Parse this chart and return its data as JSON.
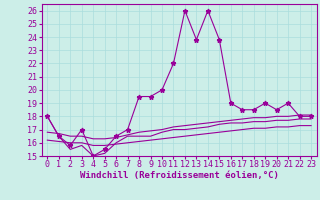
{
  "xlabel": "Windchill (Refroidissement éolien,°C)",
  "background_color": "#cceee8",
  "line_color": "#990099",
  "hours": [
    0,
    1,
    2,
    3,
    4,
    5,
    6,
    7,
    8,
    9,
    10,
    11,
    12,
    13,
    14,
    15,
    16,
    17,
    18,
    19,
    20,
    21,
    22,
    23
  ],
  "temp": [
    18,
    16.5,
    15.8,
    17,
    15,
    15.5,
    16.5,
    17,
    19.5,
    19.5,
    20,
    22,
    26,
    23.8,
    26,
    23.8,
    19,
    18.5,
    18.5,
    19,
    18.5,
    19,
    18,
    18
  ],
  "min_line": [
    18,
    16.5,
    15.5,
    15.8,
    15,
    15.2,
    16.0,
    16.5,
    16.5,
    16.5,
    16.8,
    17.0,
    17.0,
    17.1,
    17.2,
    17.4,
    17.5,
    17.5,
    17.6,
    17.6,
    17.7,
    17.7,
    17.8,
    17.8
  ],
  "trend1": [
    16.8,
    16.7,
    16.5,
    16.5,
    16.3,
    16.3,
    16.4,
    16.6,
    16.8,
    16.9,
    17.0,
    17.2,
    17.3,
    17.4,
    17.5,
    17.6,
    17.7,
    17.8,
    17.9,
    17.9,
    18.0,
    18.0,
    18.1,
    18.1
  ],
  "trend2": [
    16.2,
    16.1,
    16.0,
    16.0,
    15.8,
    15.8,
    15.9,
    16.0,
    16.1,
    16.2,
    16.3,
    16.4,
    16.5,
    16.6,
    16.7,
    16.8,
    16.9,
    17.0,
    17.1,
    17.1,
    17.2,
    17.2,
    17.3,
    17.3
  ],
  "ylim": [
    15,
    26.5
  ],
  "yticks": [
    15,
    16,
    17,
    18,
    19,
    20,
    21,
    22,
    23,
    24,
    25,
    26
  ],
  "xlim": [
    -0.5,
    23.5
  ],
  "xticks": [
    0,
    1,
    2,
    3,
    4,
    5,
    6,
    7,
    8,
    9,
    10,
    11,
    12,
    13,
    14,
    15,
    16,
    17,
    18,
    19,
    20,
    21,
    22,
    23
  ],
  "grid_color": "#aadddd",
  "tick_fontsize": 6,
  "xlabel_fontsize": 6.5
}
